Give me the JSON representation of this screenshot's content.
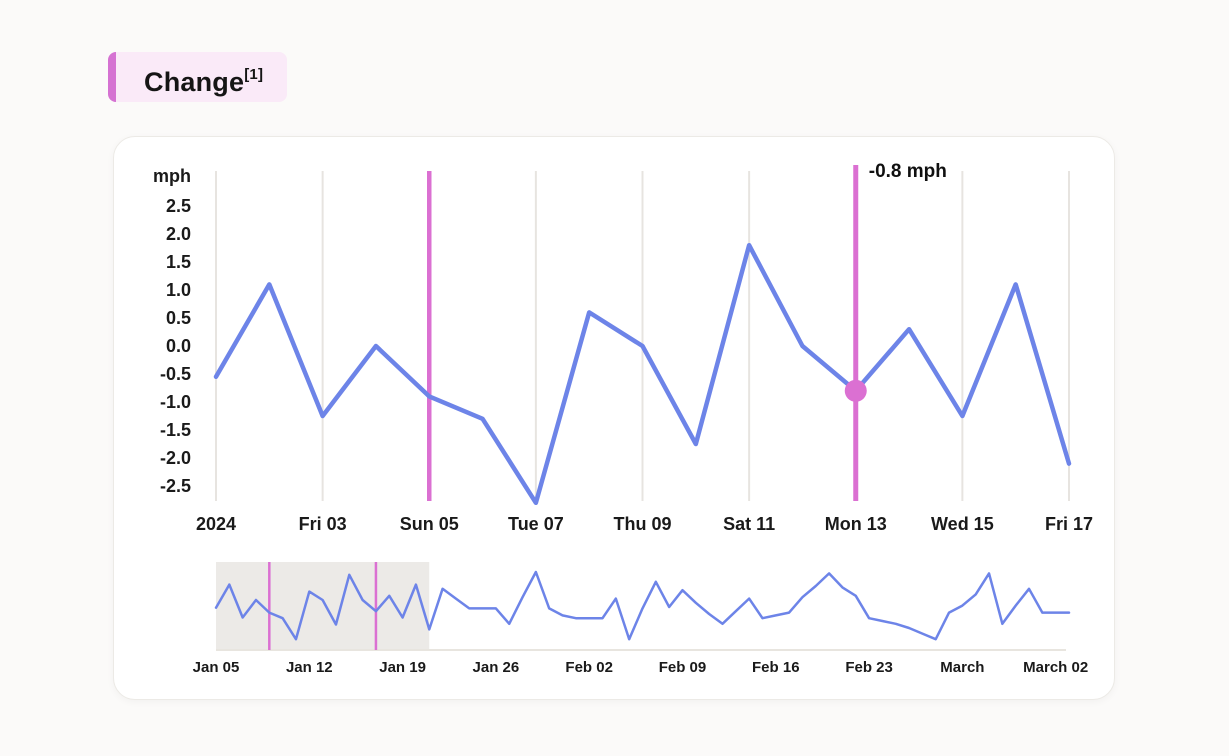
{
  "header": {
    "title": "Change",
    "superscript": "[1]"
  },
  "colors": {
    "accent_magenta": "#D572D2",
    "title_bg": "#FAEAF8",
    "line_blue": "#6D84E8",
    "marker_magenta": "#DB70D2",
    "grid_gray": "#E7E4E0",
    "selection_bg": "#ECEAE7",
    "baseline_gray": "#E8E5DF",
    "text_dark": "#1A1A1A",
    "card_bg": "#FFFFFF",
    "card_border": "#ECEAE6",
    "page_bg": "#FBFAF9"
  },
  "chart_data": [
    {
      "id": "main-change-chart",
      "type": "line",
      "title": "Change",
      "unit_label": "mph",
      "ylabel": "mph",
      "grid": "vertical-only",
      "legend": "none",
      "ylim": [
        -2.95,
        2.95
      ],
      "x_tick_labels": [
        "2024",
        "Fri 03",
        "Sun 05",
        "Tue 07",
        "Thu 09",
        "Sat 11",
        "Mon 13",
        "Wed 15",
        "Fri 17"
      ],
      "y_tick_labels": [
        "2.5",
        "2.0",
        "1.5",
        "1.0",
        "0.5",
        "0.0",
        "-0.5",
        "-1.0",
        "-1.5",
        "-2.0",
        "-2.5"
      ],
      "values": [
        -0.55,
        1.1,
        -1.25,
        0.0,
        -0.9,
        -1.3,
        -2.8,
        0.6,
        0.0,
        -1.75,
        1.8,
        0.0,
        -0.8,
        0.3,
        -1.25,
        1.1,
        -2.1
      ],
      "rule_indices": [
        4,
        12
      ],
      "highlight": {
        "index": 12,
        "value": -0.8,
        "tooltip": "-0.8 mph"
      }
    },
    {
      "id": "overview-navigator",
      "type": "line",
      "role": "overview-navigator",
      "ylim": [
        -3.2,
        3.2
      ],
      "x_tick_labels": [
        "Jan 05",
        "Jan 12",
        "Jan 19",
        "Jan 26",
        "Feb 02",
        "Feb 09",
        "Feb 16",
        "Feb 23",
        "March",
        "March 02"
      ],
      "tick_every_n_points": 7,
      "values": [
        -0.55,
        1.1,
        -1.25,
        0.0,
        -0.9,
        -1.3,
        -2.8,
        0.6,
        0.0,
        -1.75,
        1.8,
        0.0,
        -0.8,
        0.3,
        -1.25,
        1.1,
        -2.1,
        0.8,
        0.1,
        -0.6,
        -0.6,
        -0.6,
        -1.7,
        0.2,
        2.0,
        -0.6,
        -1.1,
        -1.3,
        -1.3,
        -1.3,
        0.1,
        -2.8,
        -0.6,
        1.3,
        -0.5,
        0.7,
        -0.2,
        -1.0,
        -1.7,
        -0.8,
        0.1,
        -1.3,
        -1.1,
        -0.9,
        0.2,
        1.0,
        1.9,
        0.9,
        0.3,
        -1.3,
        -1.5,
        -1.7,
        -2.0,
        -2.4,
        -2.8,
        -0.9,
        -0.4,
        0.4,
        1.9,
        -1.7,
        -0.4,
        0.8,
        -0.9,
        -0.9,
        -0.9
      ],
      "selection": {
        "start_index": 0,
        "end_index": 16
      },
      "marker_indices": [
        4,
        12
      ]
    }
  ]
}
